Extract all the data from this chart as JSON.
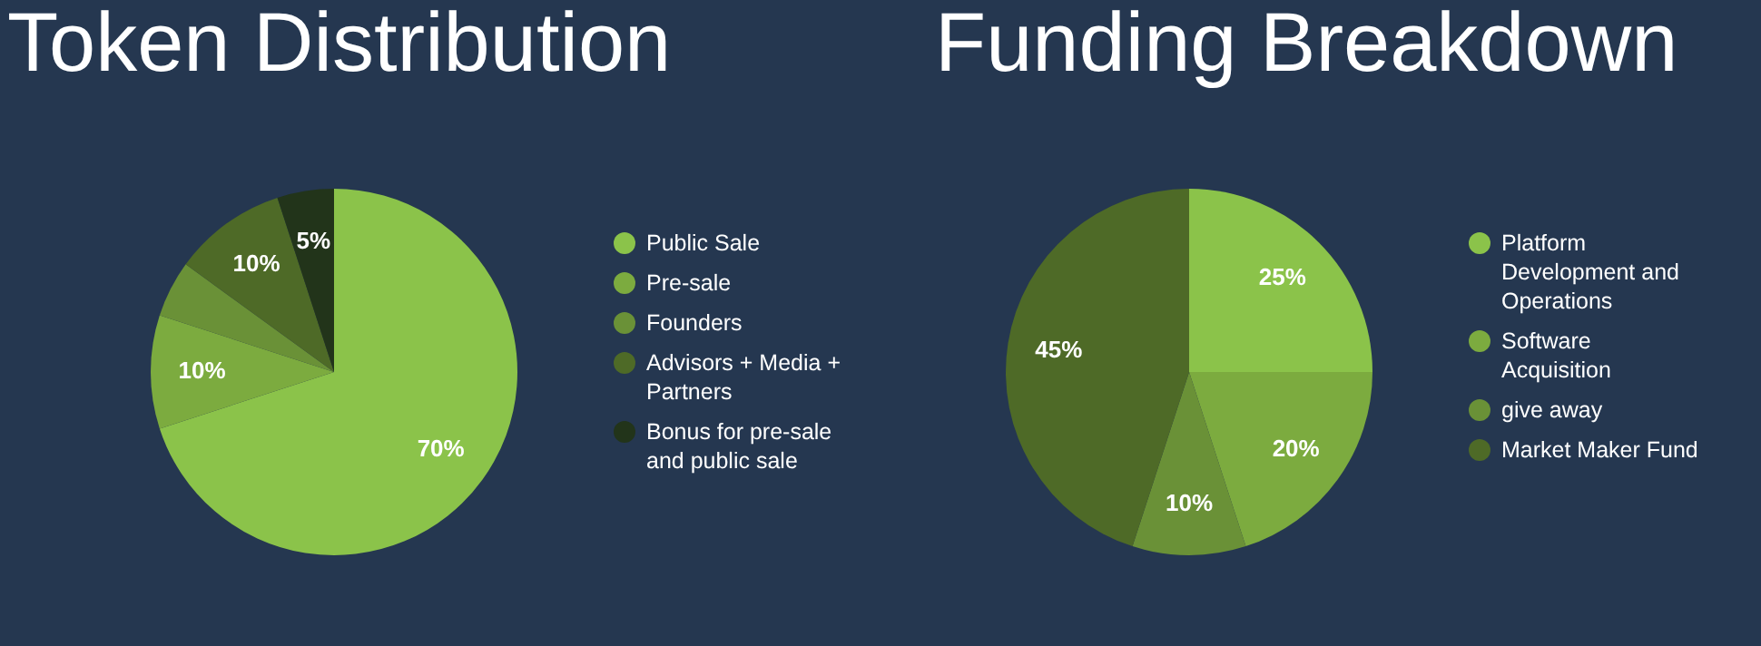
{
  "chart_data": [
    {
      "type": "pie",
      "title": "Token Distribution",
      "categories": [
        "Public Sale",
        "Pre-sale",
        "Founders",
        "Advisors + Media + Partners",
        "Bonus for pre-sale and public sale"
      ],
      "values": [
        70,
        10,
        5,
        10,
        5
      ],
      "value_labels": [
        "70%",
        "10%",
        null,
        "10%",
        "5%"
      ],
      "colors": [
        "#8bc34a",
        "#7cab3f",
        "#6a9137",
        "#4e6a27",
        "#22341a"
      ],
      "legend": "right"
    },
    {
      "type": "pie",
      "title": "Funding Breakdown",
      "categories": [
        "Platform Development and Operations",
        "Software Acquisition",
        "give away",
        "Market Maker Fund"
      ],
      "values": [
        25,
        20,
        10,
        45
      ],
      "value_labels": [
        "25%",
        "20%",
        "10%",
        "45%"
      ],
      "colors": [
        "#8bc34a",
        "#7cab3f",
        "#6a9137",
        "#4e6a27"
      ],
      "legend": "right"
    }
  ]
}
